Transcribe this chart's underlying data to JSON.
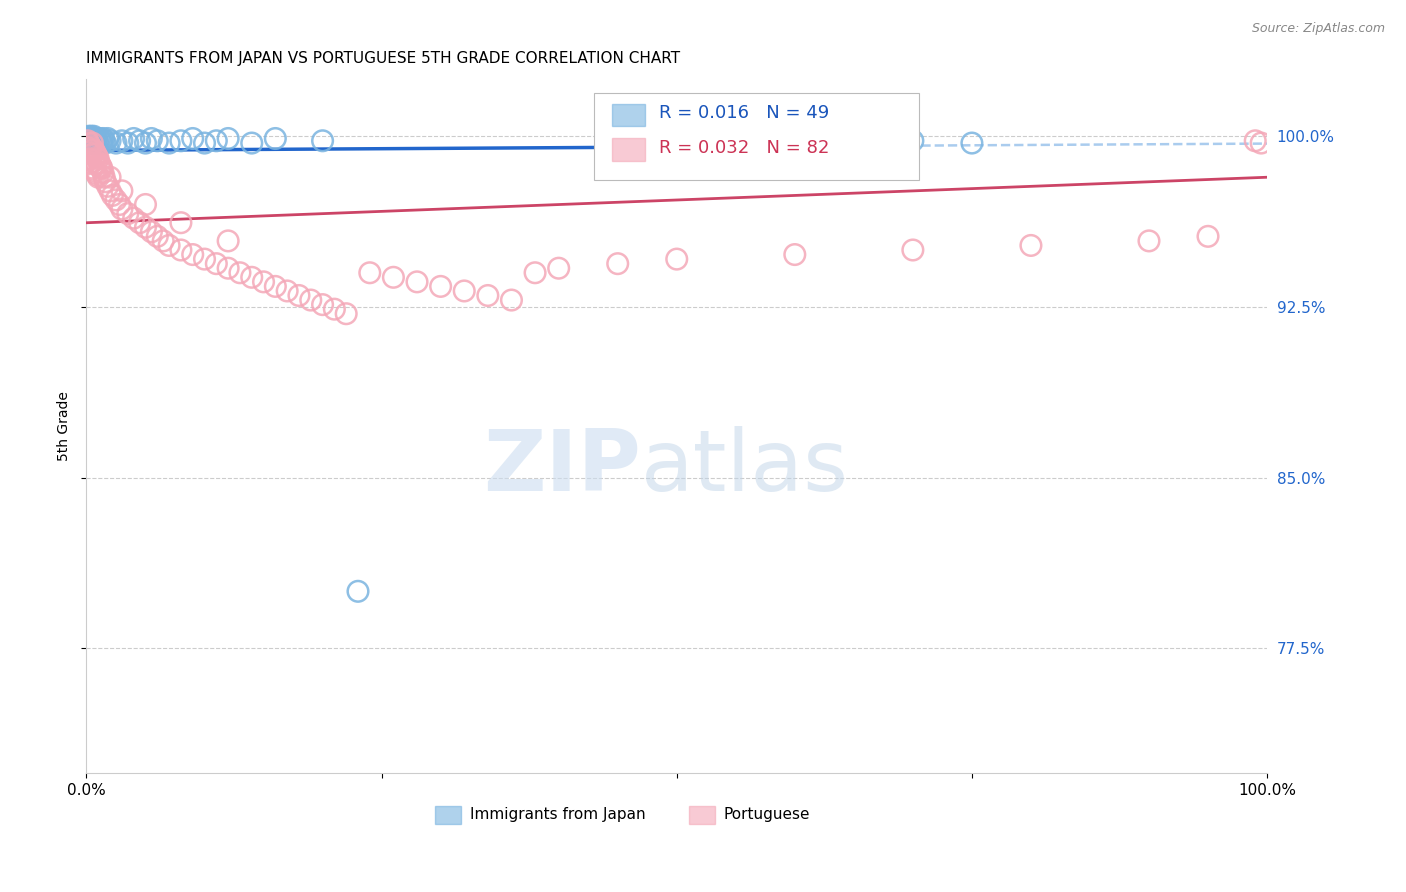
{
  "title": "IMMIGRANTS FROM JAPAN VS PORTUGUESE 5TH GRADE CORRELATION CHART",
  "source": "Source: ZipAtlas.com",
  "ylabel": "5th Grade",
  "ytick_vals": [
    0.775,
    0.85,
    0.925,
    1.0
  ],
  "ytick_labels": [
    "77.5%",
    "85.0%",
    "92.5%",
    "100.0%"
  ],
  "xlim": [
    0.0,
    1.0
  ],
  "ylim": [
    0.72,
    1.025
  ],
  "legend_R_japan": "R = 0.016",
  "legend_N_japan": "N = 49",
  "legend_R_port": "R = 0.032",
  "legend_N_port": "N = 82",
  "japan_marker_color": "#7ab4e0",
  "port_marker_color": "#f4a8b8",
  "japan_line_color": "#2266cc",
  "japan_dash_color": "#aaccee",
  "port_line_color": "#cc4466",
  "grid_color": "#cccccc",
  "title_fontsize": 11,
  "source_fontsize": 9,
  "ytick_fontsize": 11,
  "xtick_fontsize": 11,
  "legend_fontsize": 13,
  "ylabel_fontsize": 10,
  "japan_x": [
    0.001,
    0.002,
    0.002,
    0.003,
    0.003,
    0.004,
    0.004,
    0.005,
    0.005,
    0.006,
    0.006,
    0.006,
    0.007,
    0.007,
    0.008,
    0.009,
    0.01,
    0.011,
    0.012,
    0.013,
    0.014,
    0.015,
    0.016,
    0.018,
    0.02,
    0.025,
    0.03,
    0.035,
    0.04,
    0.045,
    0.05,
    0.055,
    0.06,
    0.07,
    0.08,
    0.09,
    0.1,
    0.11,
    0.12,
    0.14,
    0.16,
    0.2,
    0.45,
    0.5,
    0.55,
    0.65,
    0.7,
    0.75,
    0.23
  ],
  "japan_y": [
    0.999,
    0.998,
    1.0,
    0.997,
    0.999,
    0.998,
    1.0,
    0.997,
    0.999,
    0.998,
    1.0,
    0.999,
    0.998,
    0.997,
    0.999,
    0.998,
    0.997,
    0.999,
    0.998,
    0.997,
    0.999,
    0.998,
    0.997,
    0.999,
    0.998,
    0.997,
    0.998,
    0.997,
    0.999,
    0.998,
    0.997,
    0.999,
    0.998,
    0.997,
    0.998,
    0.999,
    0.997,
    0.998,
    0.999,
    0.997,
    0.999,
    0.998,
    0.999,
    0.998,
    0.997,
    0.999,
    0.998,
    0.997,
    0.8
  ],
  "port_x": [
    0.001,
    0.001,
    0.002,
    0.002,
    0.003,
    0.003,
    0.004,
    0.004,
    0.005,
    0.005,
    0.005,
    0.006,
    0.006,
    0.007,
    0.007,
    0.008,
    0.008,
    0.009,
    0.009,
    0.01,
    0.01,
    0.011,
    0.012,
    0.013,
    0.014,
    0.015,
    0.016,
    0.018,
    0.02,
    0.022,
    0.025,
    0.028,
    0.03,
    0.035,
    0.04,
    0.045,
    0.05,
    0.055,
    0.06,
    0.065,
    0.07,
    0.08,
    0.09,
    0.1,
    0.11,
    0.12,
    0.13,
    0.14,
    0.15,
    0.16,
    0.17,
    0.18,
    0.19,
    0.2,
    0.21,
    0.22,
    0.24,
    0.26,
    0.28,
    0.3,
    0.32,
    0.34,
    0.36,
    0.38,
    0.4,
    0.45,
    0.5,
    0.6,
    0.7,
    0.8,
    0.9,
    0.95,
    0.99,
    0.995,
    0.003,
    0.008,
    0.012,
    0.02,
    0.03,
    0.05,
    0.08,
    0.12
  ],
  "port_y": [
    0.998,
    0.995,
    0.997,
    0.993,
    0.996,
    0.99,
    0.995,
    0.988,
    0.997,
    0.992,
    0.986,
    0.994,
    0.989,
    0.993,
    0.985,
    0.992,
    0.984,
    0.991,
    0.983,
    0.99,
    0.982,
    0.988,
    0.987,
    0.986,
    0.984,
    0.982,
    0.98,
    0.978,
    0.976,
    0.974,
    0.972,
    0.97,
    0.968,
    0.966,
    0.964,
    0.962,
    0.96,
    0.958,
    0.956,
    0.954,
    0.952,
    0.95,
    0.948,
    0.946,
    0.944,
    0.942,
    0.94,
    0.938,
    0.936,
    0.934,
    0.932,
    0.93,
    0.928,
    0.926,
    0.924,
    0.922,
    0.94,
    0.938,
    0.936,
    0.934,
    0.932,
    0.93,
    0.928,
    0.94,
    0.942,
    0.944,
    0.946,
    0.948,
    0.95,
    0.952,
    0.954,
    0.956,
    0.998,
    0.997,
    0.994,
    0.988,
    0.986,
    0.982,
    0.976,
    0.97,
    0.962,
    0.954
  ]
}
